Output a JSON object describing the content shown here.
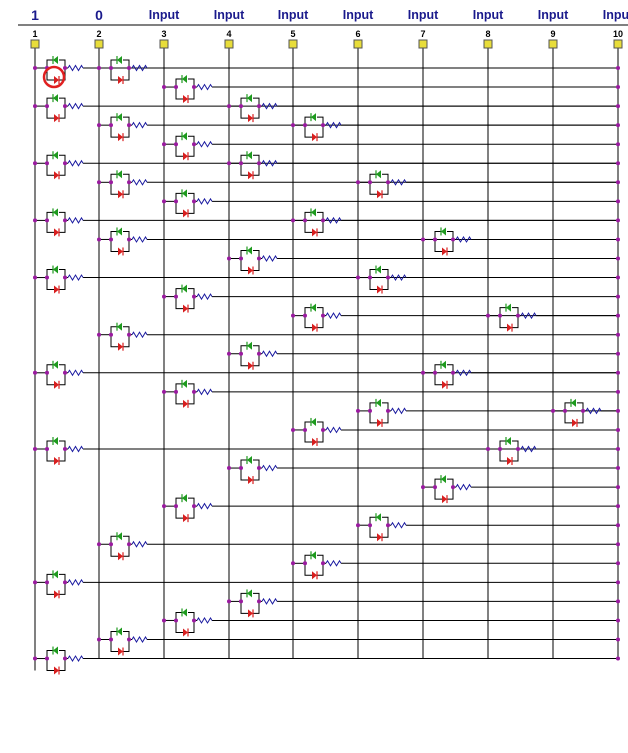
{
  "header": {
    "inputs": [
      {
        "top_label": "1",
        "index": "1"
      },
      {
        "top_label": "0",
        "index": "2"
      },
      {
        "top_label": "Input",
        "index": "3"
      },
      {
        "top_label": "Input",
        "index": "4"
      },
      {
        "top_label": "Input",
        "index": "5"
      },
      {
        "top_label": "Input",
        "index": "6"
      },
      {
        "top_label": "Input",
        "index": "7"
      },
      {
        "top_label": "Input",
        "index": "8"
      },
      {
        "top_label": "Input",
        "index": "9"
      },
      {
        "top_label": "Input",
        "index": "10"
      }
    ]
  },
  "colors": {
    "background": "#ffffff",
    "header_text": "#1a1a8c",
    "connector_pad": "#e8dd3a",
    "wire": "#000000",
    "node": "#9a1aa0",
    "diode_up": "#1e9a1e",
    "diode_down": "#d81e1e",
    "resistor": "#1a1aa0",
    "highlight_circle": "#e02020"
  },
  "diagram": {
    "components": [
      {
        "col": 1,
        "row": 0
      },
      {
        "col": 2,
        "row": 0
      },
      {
        "col": 3,
        "row": 1
      },
      {
        "col": 1,
        "row": 2
      },
      {
        "col": 4,
        "row": 2
      },
      {
        "col": 2,
        "row": 3
      },
      {
        "col": 5,
        "row": 3
      },
      {
        "col": 3,
        "row": 4
      },
      {
        "col": 1,
        "row": 5
      },
      {
        "col": 4,
        "row": 5
      },
      {
        "col": 2,
        "row": 6
      },
      {
        "col": 6,
        "row": 6
      },
      {
        "col": 3,
        "row": 7
      },
      {
        "col": 1,
        "row": 8
      },
      {
        "col": 5,
        "row": 8
      },
      {
        "col": 2,
        "row": 9
      },
      {
        "col": 7,
        "row": 9
      },
      {
        "col": 4,
        "row": 10
      },
      {
        "col": 1,
        "row": 11
      },
      {
        "col": 6,
        "row": 11
      },
      {
        "col": 3,
        "row": 12
      },
      {
        "col": 5,
        "row": 13
      },
      {
        "col": 8,
        "row": 13
      },
      {
        "col": 2,
        "row": 14
      },
      {
        "col": 4,
        "row": 15
      },
      {
        "col": 1,
        "row": 16
      },
      {
        "col": 7,
        "row": 16
      },
      {
        "col": 3,
        "row": 17
      },
      {
        "col": 6,
        "row": 18
      },
      {
        "col": 9,
        "row": 18
      },
      {
        "col": 5,
        "row": 19
      },
      {
        "col": 1,
        "row": 20
      },
      {
        "col": 8,
        "row": 20
      },
      {
        "col": 4,
        "row": 21
      },
      {
        "col": 7,
        "row": 22
      },
      {
        "col": 3,
        "row": 23
      },
      {
        "col": 6,
        "row": 24
      },
      {
        "col": 2,
        "row": 25
      },
      {
        "col": 5,
        "row": 26
      },
      {
        "col": 1,
        "row": 27
      },
      {
        "col": 4,
        "row": 28
      },
      {
        "col": 3,
        "row": 29
      },
      {
        "col": 2,
        "row": 30
      },
      {
        "col": 1,
        "row": 31
      }
    ],
    "highlighted_component": {
      "col": 1,
      "row": 0
    }
  }
}
